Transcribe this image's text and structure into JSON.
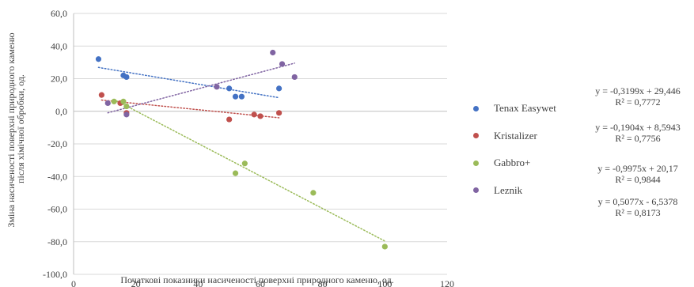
{
  "chart_data": {
    "type": "scatter",
    "xlabel": "Початкові показники насиченості поверхні природного каменю, од.",
    "ylabel": "Зміна насиченості поверхні природного каменю після хімічної обробки, од.",
    "xlim": [
      0,
      120
    ],
    "ylim": [
      -100,
      60
    ],
    "x_ticks": [
      "0",
      "20",
      "40",
      "60",
      "80",
      "100",
      "120"
    ],
    "y_ticks": [
      "60,0",
      "40,0",
      "20,0",
      "0,0",
      "-20,0",
      "-40,0",
      "-60,0",
      "-80,0",
      "-100,0"
    ],
    "grid": "horizontal",
    "legend_position": "right",
    "trendline": "linear, dotted",
    "series": [
      {
        "name": "Tenax Easywet",
        "color": "#4472C4",
        "points": [
          [
            8,
            32
          ],
          [
            16,
            22
          ],
          [
            17,
            21
          ],
          [
            50,
            14
          ],
          [
            52,
            9
          ],
          [
            54,
            9
          ],
          [
            66,
            14
          ]
        ],
        "trend": {
          "slope": -0.3199,
          "intercept": 29.446,
          "x_range": [
            8,
            66
          ]
        },
        "equation": "y = -0,3199x + 29,446",
        "r2": "R² = 0,7772"
      },
      {
        "name": "Kristalizer",
        "color": "#C0504D",
        "points": [
          [
            9,
            10
          ],
          [
            15,
            5
          ],
          [
            17,
            -1
          ],
          [
            50,
            -5
          ],
          [
            58,
            -2
          ],
          [
            60,
            -3
          ],
          [
            66,
            -1
          ]
        ],
        "trend": {
          "slope": -0.1904,
          "intercept": 8.5943,
          "x_range": [
            9,
            66
          ]
        },
        "equation": "y = -0,1904x + 8,5943",
        "r2": "R² = 0,7756"
      },
      {
        "name": "Gabbro+",
        "color": "#9BBB59",
        "points": [
          [
            13,
            6
          ],
          [
            16,
            6
          ],
          [
            17,
            3
          ],
          [
            52,
            -38
          ],
          [
            55,
            -32
          ],
          [
            77,
            -50
          ],
          [
            100,
            -83
          ]
        ],
        "trend": {
          "slope": -0.9975,
          "intercept": 20.17,
          "x_range": [
            13,
            100
          ]
        },
        "equation": "y = -0,9975x + 20,17",
        "r2": "R² = 0,9844"
      },
      {
        "name": "Leznik",
        "color": "#8064A2",
        "points": [
          [
            11,
            5
          ],
          [
            17,
            -2
          ],
          [
            46,
            15
          ],
          [
            64,
            36
          ],
          [
            67,
            29
          ],
          [
            71,
            21
          ]
        ],
        "trend": {
          "slope": 0.5077,
          "intercept": -6.5378,
          "x_range": [
            11,
            71
          ]
        },
        "equation": "y = 0,5077x - 6,5378",
        "r2": "R² = 0,8173"
      }
    ]
  }
}
